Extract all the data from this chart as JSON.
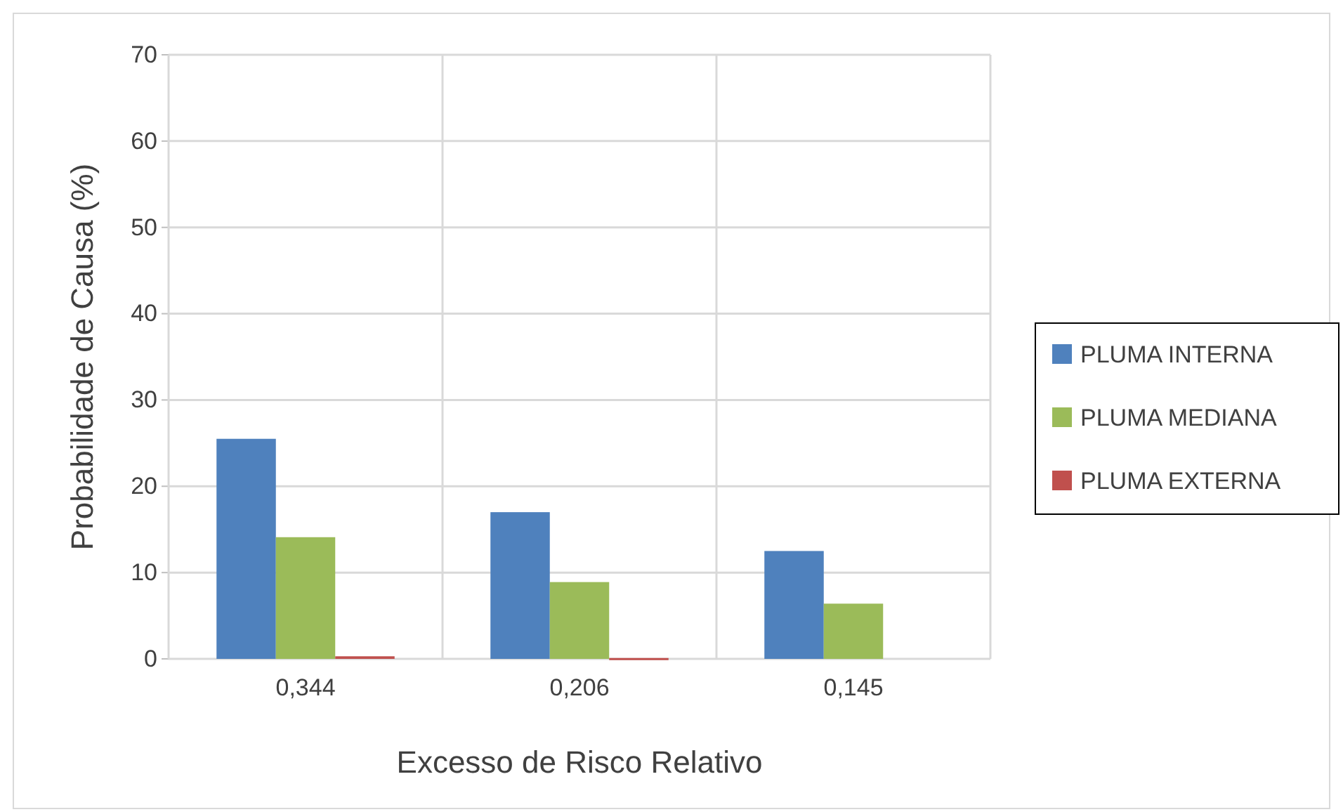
{
  "chart_data": {
    "type": "bar",
    "xlabel": "Excesso de Risco Relativo",
    "ylabel": "Probabilidade de Causa (%)",
    "categories": [
      "0,344",
      "0,206",
      "0,145"
    ],
    "series": [
      {
        "name": "PLUMA INTERNA",
        "color": "#4f81bd",
        "values": [
          25.5,
          17,
          12.5
        ]
      },
      {
        "name": "PLUMA MEDIANA",
        "color": "#9bbb59",
        "values": [
          14.1,
          8.9,
          6.4
        ]
      },
      {
        "name": "PLUMA EXTERNA",
        "color": "#c0504d",
        "values": [
          0.3,
          0.1,
          null
        ]
      }
    ],
    "ylim": [
      0,
      70
    ],
    "yticks": [
      0,
      10,
      20,
      30,
      40,
      50,
      60,
      70
    ],
    "grid": true,
    "legend": "right"
  }
}
